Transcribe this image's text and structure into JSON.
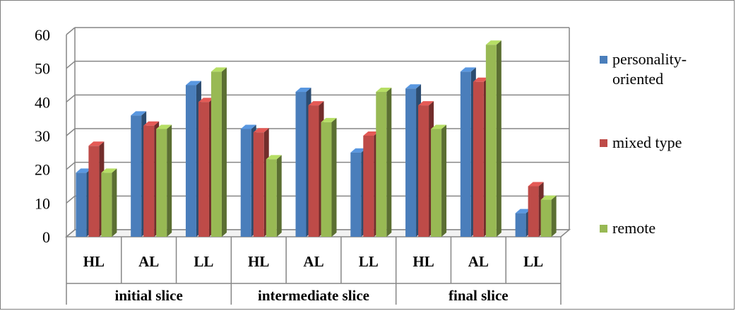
{
  "chart_data": {
    "type": "bar",
    "title": "",
    "xlabel": "",
    "ylabel": "",
    "ylim": [
      0,
      60
    ],
    "yticks": [
      "0",
      "10",
      "20",
      "30",
      "40",
      "50",
      "60"
    ],
    "categories": [
      "HL",
      "AL",
      "LL",
      "HL",
      "AL",
      "LL",
      "HL",
      "AL",
      "LL"
    ],
    "groups": [
      {
        "label": "initial slice",
        "span": 3
      },
      {
        "label": "intermediate slice",
        "span": 3
      },
      {
        "label": "final slice",
        "span": 3
      }
    ],
    "series": [
      {
        "name": "personality-oriented",
        "legend_lines": [
          "personality-",
          "oriented"
        ],
        "color": "#4a7ebb",
        "values": [
          19,
          36,
          45,
          32,
          43,
          25,
          44,
          49,
          7
        ]
      },
      {
        "name": "mixed type",
        "legend_lines": [
          "mixed type"
        ],
        "color": "#be4b48",
        "values": [
          27,
          33,
          40,
          31,
          39,
          30,
          39,
          46,
          15
        ]
      },
      {
        "name": "remote",
        "legend_lines": [
          "remote"
        ],
        "color": "#98b954",
        "values": [
          19,
          32,
          49,
          23,
          34,
          43,
          32,
          57,
          11
        ]
      }
    ],
    "grid": true,
    "legend_position": "right",
    "style": "3d-clustered-column"
  }
}
